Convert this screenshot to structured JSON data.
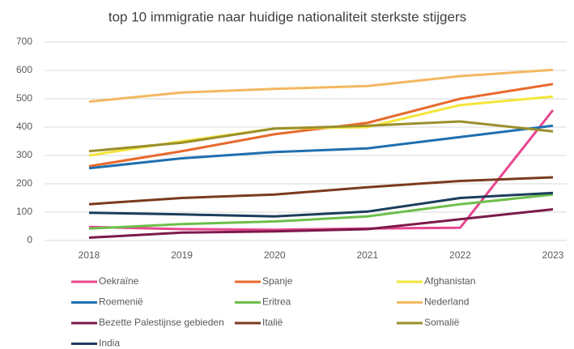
{
  "chart_data": {
    "type": "line",
    "title": "top 10 immigratie naar huidige nationaliteit sterkste stijgers",
    "categories": [
      "2018",
      "2019",
      "2020",
      "2021",
      "2022",
      "2023"
    ],
    "ylim": [
      0,
      700
    ],
    "yticks": [
      0,
      100,
      200,
      300,
      400,
      500,
      600,
      700
    ],
    "grid": true,
    "legend": "bottom",
    "series": [
      {
        "name": "Oekraïne",
        "color": "#e8468f",
        "values": [
          48,
          40,
          38,
          42,
          45,
          460
        ]
      },
      {
        "name": "Spanje",
        "color": "#e8692c",
        "values": [
          262,
          315,
          375,
          415,
          500,
          552
        ]
      },
      {
        "name": "Afghanistan",
        "color": "#f5e53a",
        "values": [
          300,
          350,
          395,
          400,
          478,
          508
        ]
      },
      {
        "name": "Roemenië",
        "color": "#1f6fb0",
        "values": [
          255,
          290,
          312,
          325,
          365,
          405
        ]
      },
      {
        "name": "Eritrea",
        "color": "#6cbf4a",
        "values": [
          42,
          58,
          67,
          85,
          128,
          162
        ]
      },
      {
        "name": "Nederland",
        "color": "#f2b860",
        "values": [
          490,
          522,
          535,
          545,
          580,
          602
        ]
      },
      {
        "name": "Bezette Palestijnse gebieden",
        "color": "#7b1a4a",
        "values": [
          10,
          28,
          32,
          40,
          75,
          110
        ]
      },
      {
        "name": "Italië",
        "color": "#7b3a1f",
        "values": [
          128,
          150,
          162,
          188,
          210,
          223
        ]
      },
      {
        "name": "Somalië",
        "color": "#9a8f2c",
        "values": [
          315,
          345,
          395,
          405,
          420,
          385
        ]
      },
      {
        "name": "India",
        "color": "#1b3d5c",
        "values": [
          98,
          92,
          85,
          102,
          150,
          168
        ]
      }
    ]
  }
}
